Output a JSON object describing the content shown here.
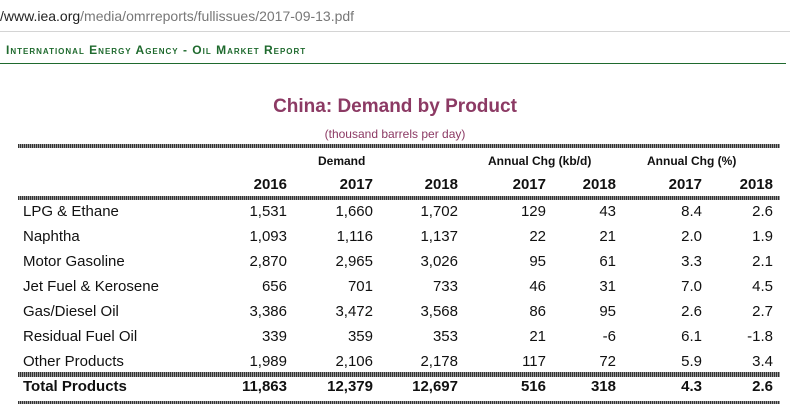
{
  "browser": {
    "url_host": "/www.iea.org",
    "url_path": "/media/omrreports/fullissues/2017-09-13.pdf"
  },
  "report_header": "International Energy Agency - Oil Market Report",
  "table": {
    "title": "China: Demand by Product",
    "subtitle": "(thousand barrels per day)",
    "group_headers": {
      "demand": "Demand",
      "annual_chg_kbd": "Annual Chg (kb/d)",
      "annual_chg_pct": "Annual Chg (%)"
    },
    "year_headers": [
      "2016",
      "2017",
      "2018",
      "2017",
      "2018",
      "2017",
      "2018"
    ],
    "rows": [
      {
        "label": "LPG & Ethane",
        "values": [
          "1,531",
          "1,660",
          "1,702",
          "129",
          "43",
          "8.4",
          "2.6"
        ]
      },
      {
        "label": "Naphtha",
        "values": [
          "1,093",
          "1,116",
          "1,137",
          "22",
          "21",
          "2.0",
          "1.9"
        ]
      },
      {
        "label": "Motor Gasoline",
        "values": [
          "2,870",
          "2,965",
          "3,026",
          "95",
          "61",
          "3.3",
          "2.1"
        ]
      },
      {
        "label": "Jet Fuel & Kerosene",
        "values": [
          "656",
          "701",
          "733",
          "46",
          "31",
          "7.0",
          "4.5"
        ]
      },
      {
        "label": "Gas/Diesel Oil",
        "values": [
          "3,386",
          "3,472",
          "3,568",
          "86",
          "95",
          "2.6",
          "2.7"
        ]
      },
      {
        "label": "Residual Fuel Oil",
        "values": [
          "339",
          "359",
          "353",
          "21",
          "-6",
          "6.1",
          "-1.8"
        ]
      },
      {
        "label": "Other Products",
        "values": [
          "1,989",
          "2,106",
          "2,178",
          "117",
          "72",
          "5.9",
          "3.4"
        ]
      }
    ],
    "total": {
      "label": "Total Products",
      "values": [
        "11,863",
        "12,379",
        "12,697",
        "516",
        "318",
        "4.3",
        "2.6"
      ]
    }
  },
  "colors": {
    "title": "#8c3a64",
    "header_green": "#1f6a2e"
  }
}
